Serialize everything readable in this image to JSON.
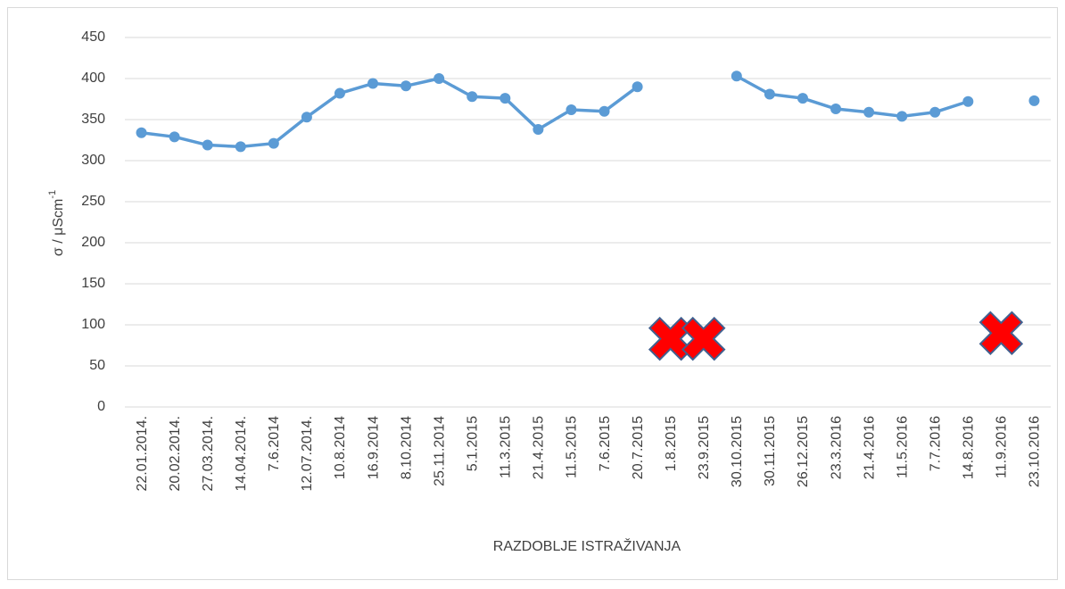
{
  "chart_data": {
    "type": "line",
    "ylabel": [
      "σ / μScm",
      "-1"
    ],
    "xlabel": "RAZDOBLJE ISTRAŽIVANJA",
    "categories": [
      "22.01.2014.",
      "20.02.2014.",
      "27.03.2014.",
      "14.04.2014.",
      "7.6.2014",
      "12.07.2014.",
      "10.8.2014",
      "16.9.2014",
      "8.10.2014",
      "25.11.2014",
      "5.1.2015",
      "11.3.2015",
      "21.4.2015",
      "11.5.2015",
      "7.6.2015",
      "20.7.2015",
      "1.8.2015",
      "23.9.2015",
      "30.10.2015",
      "30.11.2015",
      "26.12.2015",
      "23.3.2016",
      "21.4.2016",
      "11.5.2016",
      "7.7.2016",
      "14.8.2016",
      "11.9.2016",
      "23.10.2016"
    ],
    "series": [
      {
        "color": "#5b9bd5",
        "marker": "circle",
        "values": [
          334,
          329,
          319,
          317,
          321,
          353,
          382,
          394,
          391,
          400,
          378,
          376,
          338,
          362,
          360,
          390,
          null,
          null,
          403,
          381,
          376,
          363,
          359,
          354,
          359,
          372,
          null,
          373
        ]
      },
      {
        "color": "#ff0000",
        "marker": "x",
        "values": [
          null,
          null,
          null,
          null,
          null,
          null,
          null,
          null,
          null,
          null,
          null,
          null,
          null,
          null,
          null,
          null,
          83,
          83,
          null,
          null,
          null,
          null,
          null,
          null,
          null,
          null,
          90,
          null
        ]
      }
    ],
    "ylim": [
      0,
      450
    ],
    "yticks": [
      0,
      50,
      100,
      150,
      200,
      250,
      300,
      350,
      400,
      450
    ],
    "grid": true
  }
}
